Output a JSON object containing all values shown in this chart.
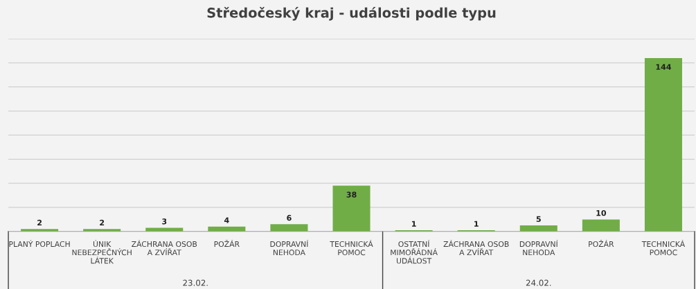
{
  "chart_data": {
    "type": "bar",
    "title": "Středočeský kraj - události podle typu",
    "categories": [
      "PLANÝ POPLACH",
      "ÚNIK NEBEZPEČNÝCH LÁTEK",
      "ZÁCHRANA OSOB A ZVÍŘAT",
      "POŽÁR",
      "DOPRAVNÍ NEHODA",
      "TECHNICKÁ POMOC",
      "OSTATNÍ MIMOŘÁDNÁ UDÁLOST",
      "ZÁCHRANA OSOB A ZVÍŘAT",
      "DOPRAVNÍ NEHODA",
      "POŽÁR",
      "TECHNICKÁ POMOC"
    ],
    "values": [
      2,
      2,
      3,
      4,
      6,
      38,
      1,
      1,
      5,
      10,
      144
    ],
    "color": "#70ad47",
    "data_labels": true,
    "ylim": [
      0,
      160
    ],
    "yticks": [
      {
        "value": 0,
        "label": null
      },
      {
        "value": 20,
        "label": null
      },
      {
        "value": 40,
        "label": null
      },
      {
        "value": 60,
        "label": null
      },
      {
        "value": 80,
        "label": null
      },
      {
        "value": 100,
        "label": null
      },
      {
        "value": 120,
        "label": null
      },
      {
        "value": 140,
        "label": null
      },
      {
        "value": 160,
        "label": null
      }
    ],
    "tick_labels": "x",
    "grid": "y",
    "annotations": [
      "23.02.",
      "24.02."
    ]
  }
}
